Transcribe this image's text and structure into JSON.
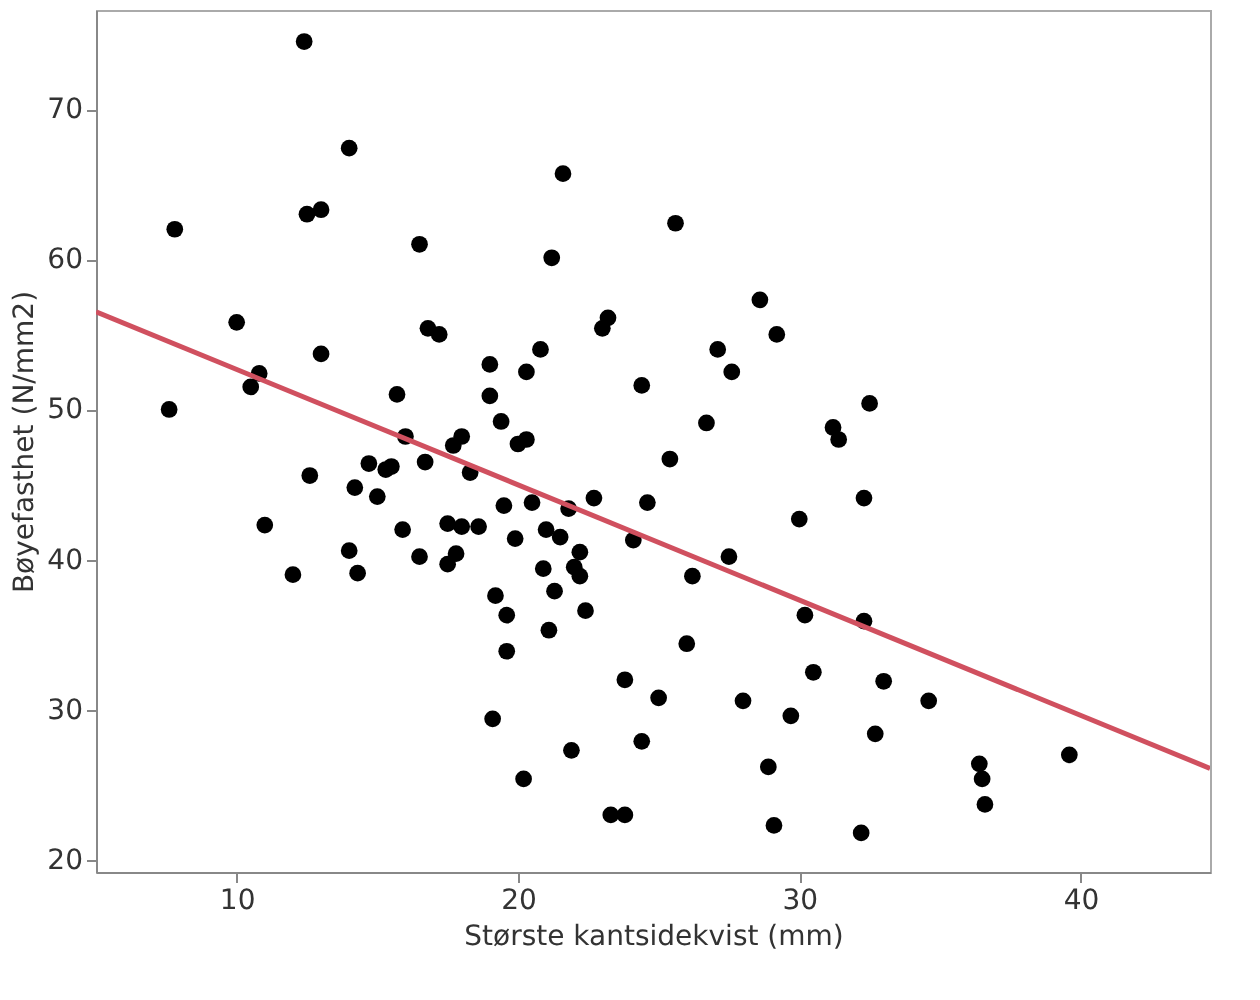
{
  "chart_data": {
    "type": "scatter",
    "xlabel": "Største kantsidekvist (mm)",
    "ylabel": "Bøyefasthet (N/mm2)",
    "xlim": [
      5,
      44.6
    ],
    "ylim": [
      19.2,
      76.6
    ],
    "xticks": [
      10,
      20,
      30,
      40
    ],
    "yticks": [
      20,
      30,
      40,
      50,
      60,
      70
    ],
    "grid": false,
    "legend": false,
    "marker": "circle",
    "series": [
      {
        "color": "#000000",
        "x": [
          7.6,
          7.8,
          10,
          10.5,
          10.8,
          11,
          12,
          12.4,
          12.5,
          12.6,
          13,
          13,
          14,
          14,
          14.2,
          14.3,
          14.7,
          15,
          15.3,
          15.5,
          15.7,
          15.9,
          16,
          16.5,
          16.5,
          16.7,
          16.8,
          17.2,
          17.5,
          17.5,
          17.7,
          17.8,
          18,
          18,
          18.3,
          18.6,
          19,
          19,
          19.2,
          19.1,
          19.4,
          19.5,
          19.6,
          19.6,
          19.9,
          20,
          20.2,
          20.3,
          20.3,
          20.5,
          20.8,
          20.9,
          21,
          21.1,
          21.2,
          21.3,
          21.5,
          21.6,
          21.8,
          21.9,
          22,
          22.2,
          22.2,
          22.4,
          22.7,
          23,
          23.2,
          23.3,
          23.8,
          23.8,
          24.1,
          24.4,
          24.4,
          24.6,
          25,
          25.4,
          25.6,
          26,
          26.2,
          26.7,
          27.1,
          27.5,
          27.6,
          28,
          28.6,
          28.9,
          29.1,
          29.2,
          29.7,
          30,
          30.2,
          30.5,
          31.2,
          31.4,
          32.2,
          32.3,
          32.3,
          32.5,
          32.7,
          33,
          34.6,
          36.4,
          36.5,
          36.6,
          39.6
        ],
        "values": [
          50,
          62,
          55.8,
          51.5,
          52.4,
          42.3,
          39,
          74.5,
          63,
          45.6,
          63.3,
          53.7,
          67.4,
          40.6,
          44.8,
          39.1,
          46.4,
          44.2,
          46,
          46.2,
          51,
          42,
          48.2,
          61,
          40.2,
          46.5,
          55.4,
          55,
          39.7,
          42.4,
          47.6,
          40.4,
          48.2,
          42.2,
          45.8,
          42.2,
          53,
          50.9,
          37.6,
          29.4,
          49.2,
          43.6,
          36.3,
          33.9,
          41.4,
          47.7,
          25.4,
          48,
          52.5,
          43.8,
          54,
          39.4,
          42,
          35.3,
          60.1,
          37.9,
          41.5,
          65.7,
          43.4,
          27.3,
          39.5,
          40.5,
          38.9,
          36.6,
          44.1,
          55.4,
          56.1,
          23,
          23,
          32,
          41.3,
          27.9,
          51.6,
          43.8,
          30.8,
          46.7,
          62.4,
          34.4,
          38.9,
          49.1,
          54,
          40.2,
          52.5,
          30.6,
          57.3,
          26.2,
          22.3,
          55,
          29.6,
          42.7,
          36.3,
          32.5,
          48.8,
          48,
          21.8,
          35.9,
          44.1,
          50.4,
          28.4,
          31.9,
          30.6,
          26.4,
          25.4,
          23.7,
          27
        ]
      },
      {
        "type": "line",
        "color": "#d0505f",
        "line_style": "solid",
        "marker": "none",
        "x": [
          5,
          44.6
        ],
        "values": [
          56.5,
          26.1
        ]
      }
    ]
  }
}
